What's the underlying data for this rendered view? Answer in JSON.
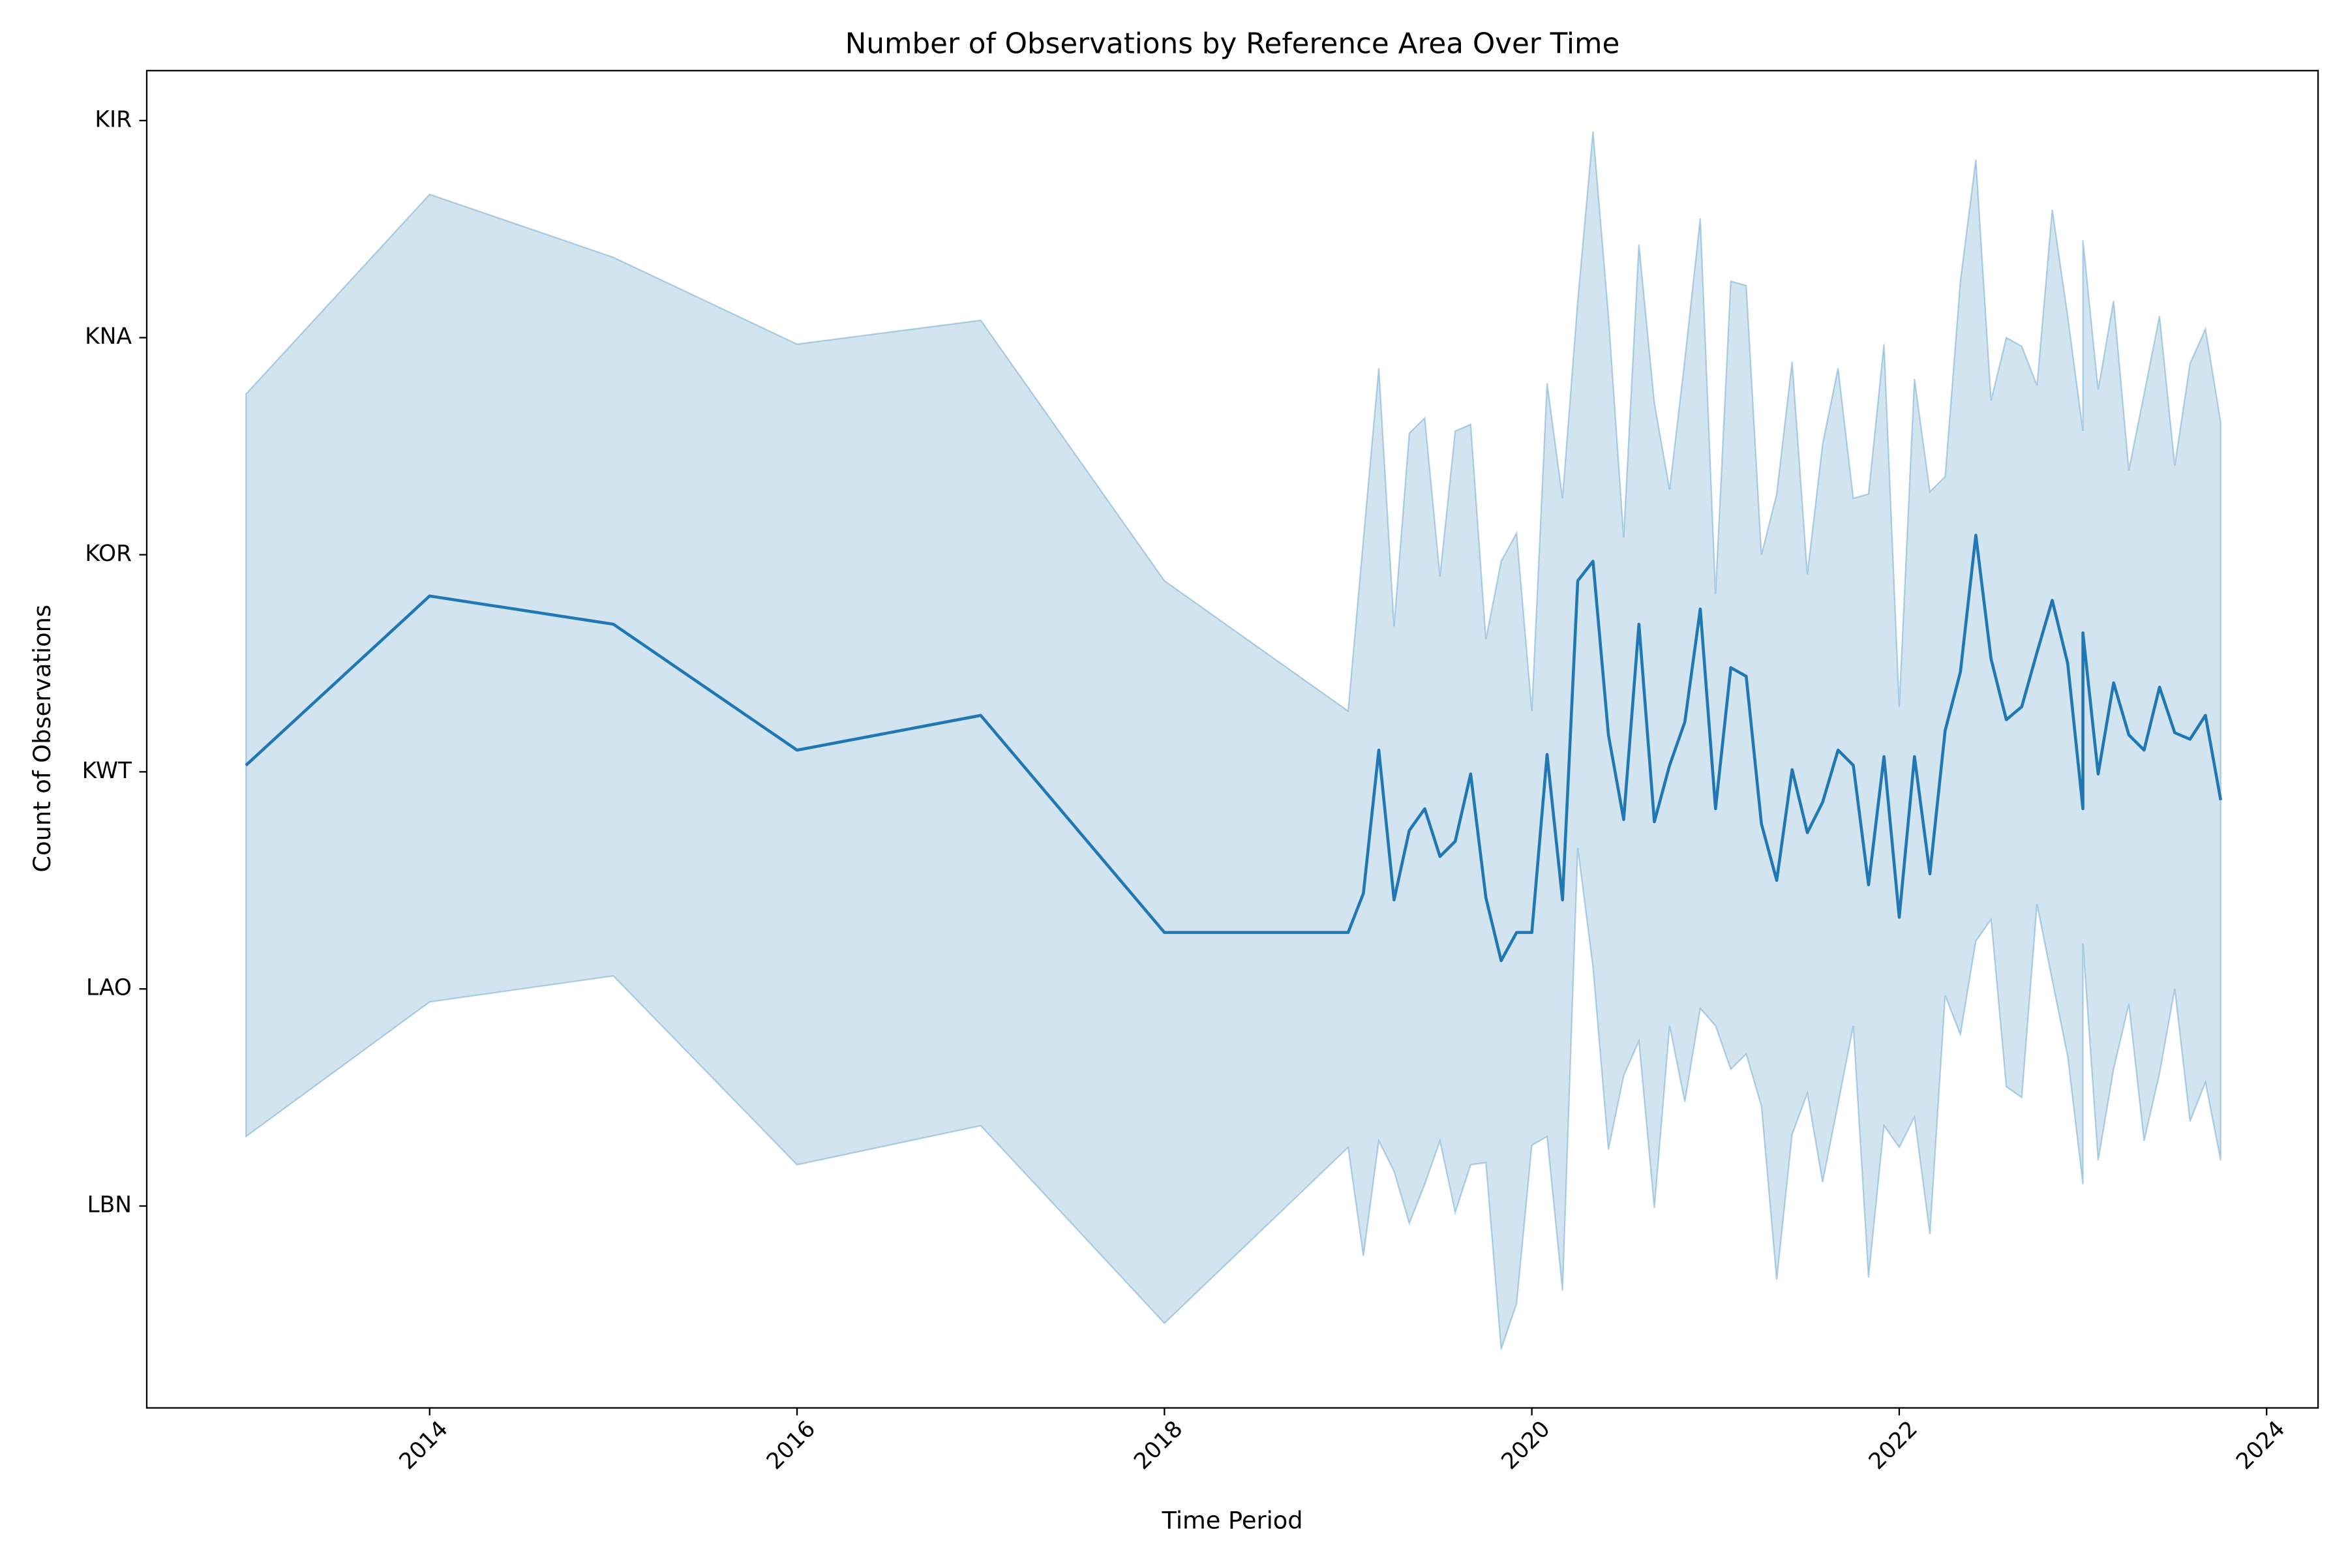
{
  "chart_data": {
    "type": "line",
    "title": "Number of Observations by Reference Area Over Time",
    "x_label": "Time Period",
    "y_label": "Count of Observations",
    "color": "#1f77b4",
    "band_opacity": 0.2,
    "xlim": [
      2012.46,
      2024.28
    ],
    "xticks": [
      2014,
      2016,
      2018,
      2020,
      2022,
      2024
    ],
    "ylim": [
      -0.93,
      5.23
    ],
    "yticks": [
      {
        "value": 0,
        "label": "LBN"
      },
      {
        "value": 1,
        "label": "LAO"
      },
      {
        "value": 2,
        "label": "KWT"
      },
      {
        "value": 3,
        "label": "KOR"
      },
      {
        "value": 4,
        "label": "KNA"
      },
      {
        "value": 5,
        "label": "KIR"
      }
    ],
    "x": [
      2013,
      2014,
      2015,
      2016,
      2017,
      2018,
      2019.0,
      2019.083,
      2019.167,
      2019.25,
      2019.333,
      2019.417,
      2019.5,
      2019.583,
      2019.667,
      2019.75,
      2019.833,
      2019.917,
      2020.0,
      2020.083,
      2020.167,
      2020.25,
      2020.333,
      2020.417,
      2020.5,
      2020.583,
      2020.667,
      2020.75,
      2020.833,
      2020.917,
      2021.0,
      2021.083,
      2021.167,
      2021.25,
      2021.333,
      2021.417,
      2021.5,
      2021.583,
      2021.667,
      2021.75,
      2021.833,
      2021.917,
      2022.0,
      2022.083,
      2022.167,
      2022.25,
      2022.333,
      2022.417,
      2022.5,
      2022.583,
      2022.667,
      2022.75,
      2022.833,
      2022.917,
      2023.0,
      2023.0,
      2023.083,
      2023.167,
      2023.25,
      2023.333,
      2023.417,
      2023.5,
      2023.583,
      2023.667,
      2023.75
    ],
    "values": [
      2.03,
      2.81,
      2.68,
      2.1,
      2.26,
      1.26,
      1.26,
      1.44,
      2.1,
      1.41,
      1.73,
      1.83,
      1.61,
      1.68,
      1.99,
      1.42,
      1.13,
      1.26,
      1.26,
      2.08,
      1.41,
      2.88,
      2.97,
      2.17,
      1.78,
      2.68,
      1.77,
      2.03,
      2.23,
      2.75,
      1.83,
      2.48,
      2.44,
      1.76,
      1.5,
      2.01,
      1.72,
      1.86,
      2.1,
      2.03,
      1.48,
      2.07,
      1.33,
      2.07,
      1.53,
      2.19,
      2.46,
      3.09,
      2.52,
      2.24,
      2.3,
      2.55,
      2.79,
      2.5,
      1.83,
      2.64,
      1.99,
      2.41,
      2.17,
      2.1,
      2.39,
      2.18,
      2.15,
      2.26,
      1.87
    ],
    "upper": [
      3.74,
      4.66,
      4.37,
      3.97,
      4.08,
      2.88,
      2.28,
      3.07,
      3.86,
      2.67,
      3.56,
      3.63,
      2.9,
      3.57,
      3.6,
      2.61,
      2.97,
      3.1,
      2.28,
      3.79,
      3.26,
      4.17,
      4.95,
      4.1,
      3.08,
      4.43,
      3.7,
      3.3,
      3.9,
      4.55,
      2.82,
      4.26,
      4.24,
      3.0,
      3.28,
      3.89,
      2.91,
      3.51,
      3.86,
      3.26,
      3.28,
      3.97,
      2.3,
      3.81,
      3.29,
      3.36,
      4.26,
      4.82,
      3.71,
      4.0,
      3.96,
      3.78,
      4.59,
      4.1,
      3.57,
      4.45,
      3.76,
      4.17,
      3.39,
      3.74,
      4.1,
      3.41,
      3.88,
      4.04,
      3.61
    ],
    "lower": [
      0.32,
      0.94,
      1.06,
      0.19,
      0.37,
      -0.54,
      0.27,
      -0.23,
      0.3,
      0.16,
      -0.08,
      0.1,
      0.3,
      -0.03,
      0.19,
      0.2,
      -0.66,
      -0.45,
      0.28,
      0.32,
      -0.39,
      1.65,
      1.1,
      0.26,
      0.6,
      0.76,
      -0.01,
      0.83,
      0.48,
      0.91,
      0.83,
      0.63,
      0.7,
      0.46,
      -0.34,
      0.33,
      0.52,
      0.11,
      0.47,
      0.83,
      -0.33,
      0.37,
      0.27,
      0.41,
      -0.13,
      0.97,
      0.79,
      1.22,
      1.32,
      0.55,
      0.5,
      1.39,
      1.04,
      0.69,
      0.1,
      1.21,
      0.21,
      0.63,
      0.93,
      0.3,
      0.61,
      1.0,
      0.39,
      0.57,
      0.21
    ]
  }
}
